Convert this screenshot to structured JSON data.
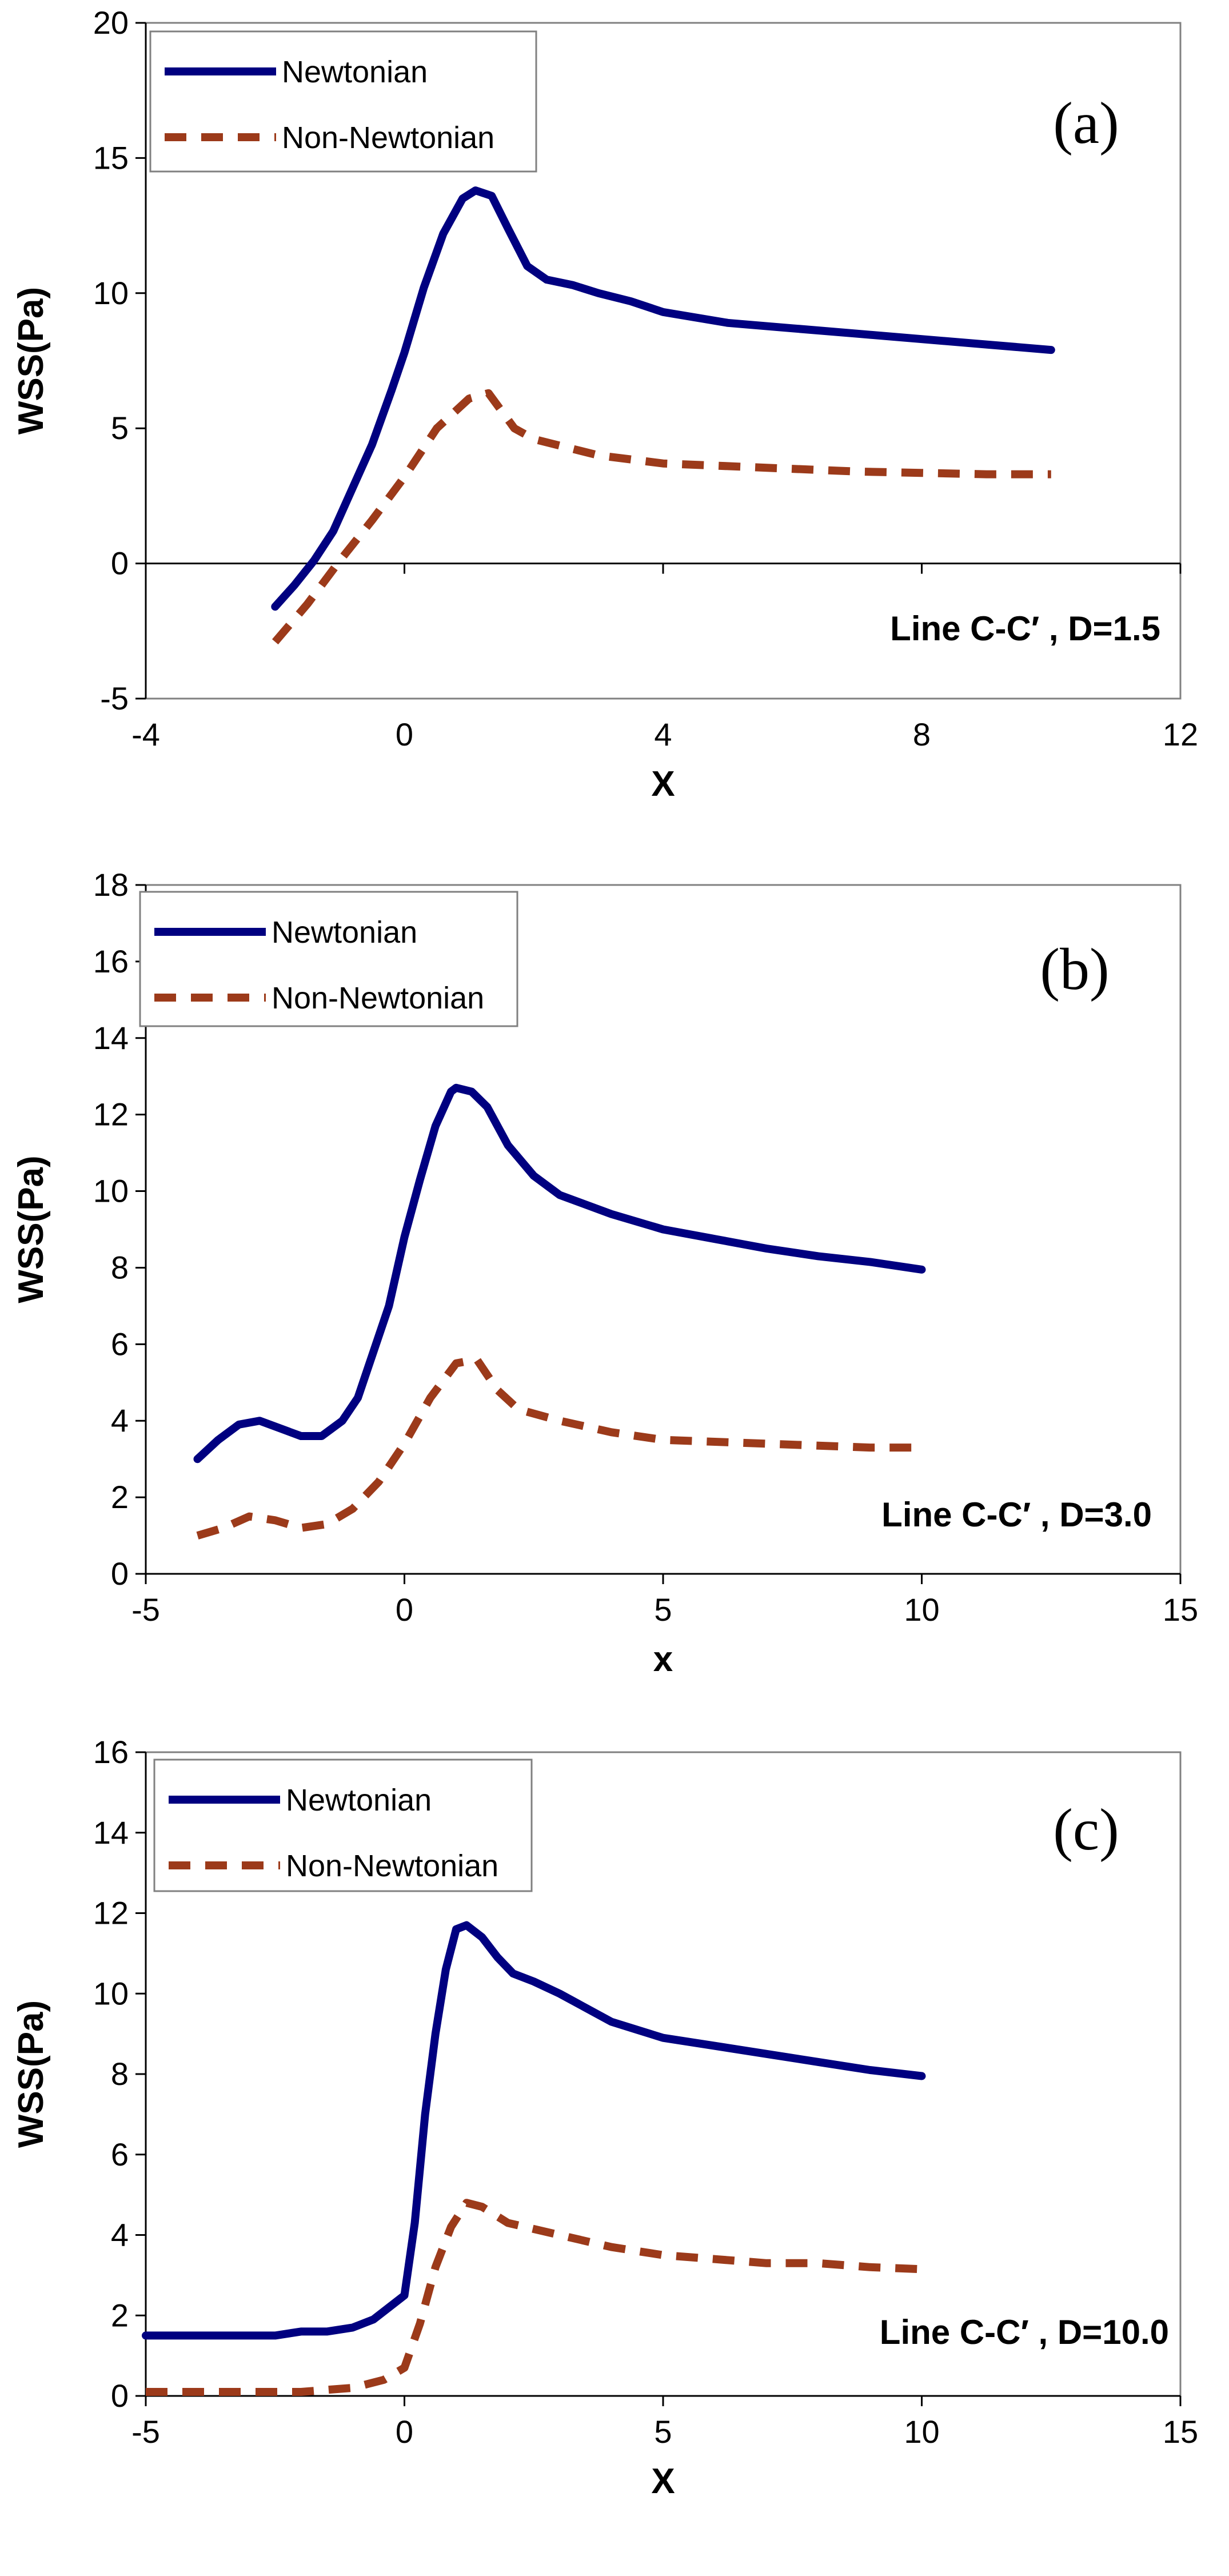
{
  "chart_data": [
    {
      "type": "line",
      "panel_label": "(a)",
      "annotation": "Line C-C′ , D=1.5",
      "xlabel": "X",
      "ylabel": "WSS(Pa)",
      "xlim": [
        -4,
        12
      ],
      "ylim": [
        -5,
        20
      ],
      "xticks": [
        -4,
        0,
        4,
        8,
        12
      ],
      "yticks": [
        -5,
        0,
        5,
        10,
        15,
        20
      ],
      "xtick_labels": [
        "-4",
        "0",
        "4",
        "8",
        "12"
      ],
      "ytick_labels": [
        "-5",
        "0",
        "5",
        "10",
        "15",
        "20"
      ],
      "grid": false,
      "legend_position": "top-left",
      "series": [
        {
          "name": "Newtonian",
          "style": "solid",
          "color": "#000080",
          "x": [
            -2.0,
            -1.7,
            -1.4,
            -1.1,
            -0.8,
            -0.5,
            -0.2,
            0.0,
            0.3,
            0.6,
            0.9,
            1.1,
            1.35,
            1.6,
            1.9,
            2.2,
            2.6,
            3.0,
            3.5,
            4.0,
            5.0,
            6.0,
            7.0,
            8.0,
            9.0,
            10.0
          ],
          "y": [
            -1.6,
            -0.8,
            0.1,
            1.2,
            2.8,
            4.4,
            6.4,
            7.8,
            10.2,
            12.2,
            13.5,
            13.8,
            13.6,
            12.4,
            11.0,
            10.5,
            10.3,
            10.0,
            9.7,
            9.3,
            8.9,
            8.7,
            8.5,
            8.3,
            8.1,
            7.9
          ]
        },
        {
          "name": "Non-Newtonian",
          "style": "dashed",
          "color": "#9C3A1A",
          "x": [
            -2.0,
            -1.5,
            -1.0,
            -0.5,
            0.0,
            0.5,
            1.0,
            1.3,
            1.7,
            2.0,
            2.5,
            3.0,
            4.0,
            5.0,
            6.0,
            7.0,
            8.0,
            9.0,
            10.0
          ],
          "y": [
            -2.9,
            -1.5,
            0.1,
            1.6,
            3.2,
            5.0,
            6.1,
            6.3,
            5.0,
            4.6,
            4.3,
            4.0,
            3.7,
            3.6,
            3.5,
            3.4,
            3.35,
            3.3,
            3.3
          ]
        }
      ]
    },
    {
      "type": "line",
      "panel_label": "(b)",
      "annotation": "Line C-C′ , D=3.0",
      "xlabel": "x",
      "ylabel": "WSS(Pa)",
      "xlim": [
        -5,
        15
      ],
      "ylim": [
        0,
        18
      ],
      "xticks": [
        -5,
        0,
        5,
        10,
        15
      ],
      "yticks": [
        0,
        2,
        4,
        6,
        8,
        10,
        12,
        14,
        16,
        18
      ],
      "xtick_labels": [
        "-5",
        "0",
        "5",
        "10",
        "15"
      ],
      "ytick_labels": [
        "0",
        "2",
        "4",
        "6",
        "8",
        "10",
        "12",
        "14",
        "16",
        "18"
      ],
      "grid": false,
      "legend_position": "top-left",
      "series": [
        {
          "name": "Newtonian",
          "style": "solid",
          "color": "#000080",
          "x": [
            -4.0,
            -3.6,
            -3.2,
            -2.8,
            -2.4,
            -2.0,
            -1.6,
            -1.2,
            -0.9,
            -0.6,
            -0.3,
            0.0,
            0.3,
            0.6,
            0.9,
            1.0,
            1.3,
            1.6,
            2.0,
            2.5,
            3.0,
            4.0,
            5.0,
            6.0,
            7.0,
            8.0,
            9.0,
            10.0
          ],
          "y": [
            3.0,
            3.5,
            3.9,
            4.0,
            3.8,
            3.6,
            3.6,
            4.0,
            4.6,
            5.8,
            7.0,
            8.8,
            10.3,
            11.7,
            12.6,
            12.7,
            12.6,
            12.2,
            11.2,
            10.4,
            9.9,
            9.4,
            9.0,
            8.75,
            8.5,
            8.3,
            8.15,
            7.95
          ]
        },
        {
          "name": "Non-Newtonian",
          "style": "dashed",
          "color": "#9C3A1A",
          "x": [
            -4.0,
            -3.5,
            -3.0,
            -2.5,
            -2.0,
            -1.5,
            -1.0,
            -0.5,
            0.0,
            0.5,
            1.0,
            1.4,
            1.8,
            2.2,
            3.0,
            4.0,
            5.0,
            6.0,
            7.0,
            8.0,
            9.0,
            10.0
          ],
          "y": [
            1.0,
            1.2,
            1.5,
            1.4,
            1.2,
            1.3,
            1.7,
            2.4,
            3.4,
            4.6,
            5.5,
            5.6,
            4.8,
            4.3,
            4.0,
            3.7,
            3.5,
            3.45,
            3.4,
            3.35,
            3.3,
            3.3
          ]
        }
      ]
    },
    {
      "type": "line",
      "panel_label": "(c)",
      "annotation": "Line C-C′ , D=10.0",
      "xlabel": "X",
      "ylabel": "WSS(Pa)",
      "xlim": [
        -5,
        15
      ],
      "ylim": [
        0,
        16
      ],
      "xticks": [
        -5,
        0,
        5,
        10,
        15
      ],
      "yticks": [
        0,
        2,
        4,
        6,
        8,
        10,
        12,
        14,
        16
      ],
      "xtick_labels": [
        "-5",
        "0",
        "5",
        "10",
        "15"
      ],
      "ytick_labels": [
        "0",
        "2",
        "4",
        "6",
        "8",
        "10",
        "12",
        "14",
        "16"
      ],
      "grid": false,
      "legend_position": "top-left",
      "series": [
        {
          "name": "Newtonian",
          "style": "solid",
          "color": "#000080",
          "x": [
            -5.0,
            -4.0,
            -3.0,
            -2.5,
            -2.0,
            -1.5,
            -1.0,
            -0.6,
            -0.3,
            0.0,
            0.2,
            0.4,
            0.6,
            0.8,
            1.0,
            1.2,
            1.5,
            1.8,
            2.1,
            2.5,
            3.0,
            4.0,
            5.0,
            6.0,
            7.0,
            8.0,
            9.0,
            10.0
          ],
          "y": [
            1.5,
            1.5,
            1.5,
            1.5,
            1.6,
            1.6,
            1.7,
            1.9,
            2.2,
            2.5,
            4.3,
            7.0,
            9.0,
            10.6,
            11.6,
            11.7,
            11.4,
            10.9,
            10.5,
            10.3,
            10.0,
            9.3,
            8.9,
            8.7,
            8.5,
            8.3,
            8.1,
            7.95
          ]
        },
        {
          "name": "Non-Newtonian",
          "style": "dashed",
          "color": "#9C3A1A",
          "x": [
            -5.0,
            -4.0,
            -3.0,
            -2.0,
            -1.5,
            -1.0,
            -0.7,
            -0.4,
            0.0,
            0.3,
            0.6,
            0.9,
            1.2,
            1.5,
            2.0,
            3.0,
            4.0,
            5.0,
            6.0,
            7.0,
            8.0,
            9.0,
            10.0
          ],
          "y": [
            0.1,
            0.1,
            0.1,
            0.1,
            0.15,
            0.2,
            0.3,
            0.4,
            0.7,
            1.8,
            3.2,
            4.2,
            4.8,
            4.7,
            4.3,
            4.0,
            3.7,
            3.5,
            3.4,
            3.3,
            3.3,
            3.2,
            3.15
          ]
        }
      ]
    }
  ]
}
